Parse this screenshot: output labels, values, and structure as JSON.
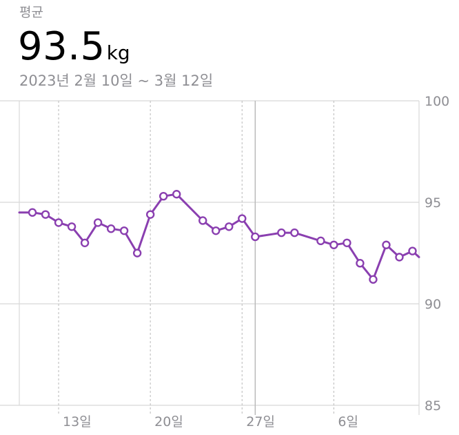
{
  "header": {
    "label": "평균",
    "value": "93.5",
    "unit": "kg",
    "date_range": "2023년 2월 10일 ~ 3월 12일"
  },
  "colors": {
    "line": "#8a3fb0",
    "marker_fill": "#ffffff",
    "grid": "#d8d8d8",
    "grid_dashed": "#c4c4c4",
    "selection": "#b8b8b8",
    "axis_text": "#8e8e93"
  },
  "chart_data": {
    "type": "line",
    "title": "",
    "xlabel": "",
    "ylabel": "",
    "x_tick_labels": [
      "13일",
      "20일",
      "27일",
      "6일"
    ],
    "x_ticks": [
      "2023-02-13",
      "2023-02-20",
      "2023-02-27",
      "2023-03-06"
    ],
    "xlim": [
      "2023-02-10",
      "2023-03-12"
    ],
    "ylim": [
      85,
      100
    ],
    "y_ticks": [
      85,
      90,
      95,
      100
    ],
    "y_tick_labels": [
      "85",
      "90",
      "95",
      "100"
    ],
    "grid": true,
    "selected_x": "2023-02-28",
    "series": [
      {
        "values": [
          {
            "x": "2023-02-10",
            "y": 94.5,
            "marker": false
          },
          {
            "x": "2023-02-11",
            "y": 94.5
          },
          {
            "x": "2023-02-12",
            "y": 94.4
          },
          {
            "x": "2023-02-13",
            "y": 94.0
          },
          {
            "x": "2023-02-14",
            "y": 93.8
          },
          {
            "x": "2023-02-15",
            "y": 93.0
          },
          {
            "x": "2023-02-16",
            "y": 94.0
          },
          {
            "x": "2023-02-17",
            "y": 93.7
          },
          {
            "x": "2023-02-18",
            "y": 93.6
          },
          {
            "x": "2023-02-19",
            "y": 92.5
          },
          {
            "x": "2023-02-20",
            "y": 94.4
          },
          {
            "x": "2023-02-21",
            "y": 95.3
          },
          {
            "x": "2023-02-22",
            "y": 95.4
          },
          {
            "x": "2023-02-24",
            "y": 94.1
          },
          {
            "x": "2023-02-25",
            "y": 93.6
          },
          {
            "x": "2023-02-26",
            "y": 93.8
          },
          {
            "x": "2023-02-27",
            "y": 94.2
          },
          {
            "x": "2023-02-28",
            "y": 93.3
          },
          {
            "x": "2023-03-02",
            "y": 93.5
          },
          {
            "x": "2023-03-03",
            "y": 93.5
          },
          {
            "x": "2023-03-05",
            "y": 93.1
          },
          {
            "x": "2023-03-06",
            "y": 92.9
          },
          {
            "x": "2023-03-07",
            "y": 93.0
          },
          {
            "x": "2023-03-08",
            "y": 92.0
          },
          {
            "x": "2023-03-09",
            "y": 91.2
          },
          {
            "x": "2023-03-10",
            "y": 92.9
          },
          {
            "x": "2023-03-11",
            "y": 92.3
          },
          {
            "x": "2023-03-12",
            "y": 92.6
          },
          {
            "x": "2023-03-12T12:00",
            "y": 92.3,
            "marker": false
          }
        ]
      }
    ]
  }
}
